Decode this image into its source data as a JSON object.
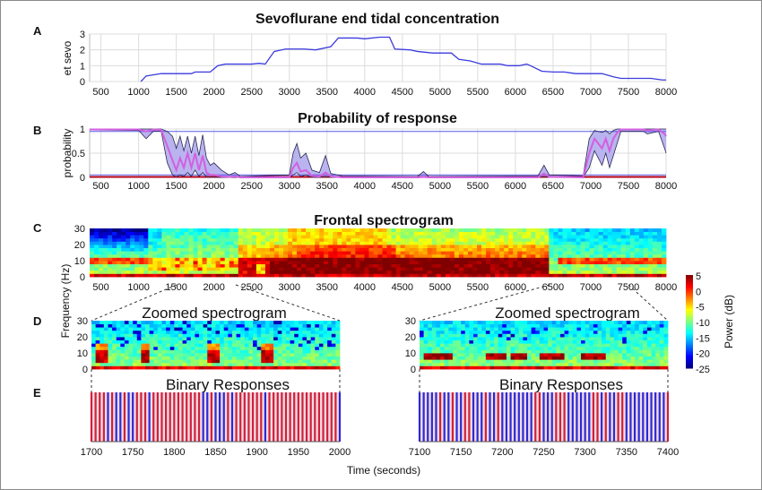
{
  "panels": {
    "A": {
      "letter": "A",
      "title": "Sevoflurane end tidal concentration",
      "ylabel": "et sevo"
    },
    "B": {
      "letter": "B",
      "title": "Probability of response",
      "ylabel": "probability"
    },
    "C": {
      "letter": "C",
      "title": "Frontal spectrogram",
      "ylabel": "Frequency (Hz)"
    },
    "D": {
      "letter": "D",
      "title_left": "Zoomed spectrogram",
      "title_right": "Zoomed spectrogram"
    },
    "E": {
      "letter": "E",
      "title_left": "Binary Responses",
      "title_right": "Binary Responses",
      "xlabel": "Time (seconds)"
    },
    "colorbar": {
      "label": "Power (dB)"
    }
  },
  "chart_data": [
    {
      "id": "A",
      "type": "line",
      "title": "Sevoflurane end tidal concentration",
      "xlabel": "",
      "ylabel": "et sevo",
      "xlim": [
        350,
        8000
      ],
      "ylim": [
        0,
        3
      ],
      "grid": true,
      "xticks": [
        "500",
        "1000",
        "1500",
        "2000",
        "2500",
        "3000",
        "3500",
        "4000",
        "4500",
        "5000",
        "5500",
        "6000",
        "6500",
        "7000",
        "7500",
        "8000"
      ],
      "yticks": [
        "0",
        "1",
        "2",
        "3"
      ],
      "color": "#3a3adf",
      "x": [
        1030,
        1100,
        1300,
        1700,
        1750,
        1950,
        2050,
        2150,
        2500,
        2600,
        2680,
        2800,
        2950,
        3200,
        3350,
        3550,
        3650,
        3900,
        4000,
        4200,
        4330,
        4400,
        4600,
        4700,
        4900,
        5150,
        5250,
        5400,
        5550,
        5800,
        5900,
        6050,
        6150,
        6200,
        6350,
        6500,
        6650,
        6800,
        7150,
        7300,
        7400,
        7800,
        7950,
        8000
      ],
      "y": [
        0,
        0.35,
        0.5,
        0.5,
        0.6,
        0.6,
        1.0,
        1.1,
        1.1,
        1.15,
        1.1,
        1.9,
        2.05,
        2.05,
        2.0,
        2.2,
        2.75,
        2.75,
        2.7,
        2.8,
        2.8,
        2.05,
        2.0,
        1.9,
        1.8,
        1.8,
        1.4,
        1.3,
        1.1,
        1.1,
        1.0,
        1.0,
        1.1,
        1.0,
        0.65,
        0.6,
        0.6,
        0.5,
        0.5,
        0.3,
        0.2,
        0.2,
        0.1,
        0.1
      ]
    },
    {
      "id": "B",
      "type": "area",
      "title": "Probability of response",
      "xlabel": "",
      "ylabel": "probability",
      "xlim": [
        350,
        8000
      ],
      "ylim": [
        0,
        1
      ],
      "grid": true,
      "xticks": [
        "500",
        "1000",
        "1500",
        "2000",
        "2500",
        "3000",
        "3500",
        "4000",
        "4500",
        "5000",
        "5500",
        "6000",
        "6500",
        "7000",
        "7500",
        "8000"
      ],
      "yticks": [
        "0",
        "0.5",
        "1"
      ],
      "reference_lines": [
        0.95,
        0.05
      ],
      "colors": {
        "band": "#b9b4ef",
        "median": "#d35fe0",
        "bounds": "#2a2a55",
        "reference": "#5a5ae8",
        "baseline": "#b0001a"
      },
      "x": [
        350,
        1000,
        1100,
        1200,
        1300,
        1380,
        1450,
        1500,
        1550,
        1600,
        1650,
        1700,
        1750,
        1800,
        1850,
        1900,
        1950,
        2000,
        2100,
        2200,
        2280,
        2350,
        3000,
        3050,
        3100,
        3150,
        3220,
        3300,
        3400,
        3480,
        3550,
        3700,
        4700,
        4780,
        4850,
        6300,
        6380,
        6450,
        6900,
        6980,
        7050,
        7100,
        7150,
        7200,
        7250,
        7300,
        7350,
        7400,
        7700,
        7750,
        7900,
        7980,
        8000
      ],
      "lower": [
        0.98,
        0.97,
        0.8,
        0.96,
        0.95,
        0.3,
        0.05,
        0.01,
        0.05,
        0.02,
        0.1,
        0.02,
        0.15,
        0.02,
        0.1,
        0.01,
        0,
        0,
        0,
        0,
        0,
        0,
        0,
        0.05,
        0.1,
        0.02,
        0.05,
        0,
        0,
        0.02,
        0,
        0,
        0,
        0,
        0,
        0,
        0.02,
        0,
        0,
        0.2,
        0.55,
        0.4,
        0.25,
        0.5,
        0.2,
        0.45,
        0.7,
        0.95,
        0.95,
        0.9,
        0.95,
        0.6,
        0.5
      ],
      "median": [
        0.99,
        0.99,
        0.95,
        0.99,
        0.98,
        0.65,
        0.35,
        0.15,
        0.4,
        0.2,
        0.5,
        0.2,
        0.5,
        0.15,
        0.45,
        0.1,
        0.05,
        0.05,
        0.02,
        0.01,
        0.02,
        0,
        0,
        0.2,
        0.3,
        0.12,
        0.15,
        0.03,
        0.02,
        0.1,
        0.02,
        0,
        0,
        0.01,
        0,
        0,
        0.08,
        0.01,
        0,
        0.5,
        0.8,
        0.7,
        0.6,
        0.8,
        0.55,
        0.8,
        0.92,
        0.99,
        0.99,
        0.97,
        0.99,
        0.9,
        0.85
      ],
      "upper": [
        1,
        1,
        1,
        1,
        1,
        0.95,
        0.85,
        0.6,
        0.85,
        0.55,
        0.85,
        0.5,
        0.85,
        0.45,
        0.88,
        0.4,
        0.25,
        0.3,
        0.15,
        0.05,
        0.1,
        0.02,
        0.05,
        0.5,
        0.7,
        0.4,
        0.5,
        0.15,
        0.1,
        0.45,
        0.08,
        0.03,
        0.02,
        0.12,
        0.02,
        0.03,
        0.25,
        0.05,
        0.03,
        0.8,
        0.97,
        0.95,
        0.93,
        0.97,
        0.9,
        0.97,
        1,
        1,
        1,
        1,
        1,
        1,
        1
      ]
    },
    {
      "id": "C",
      "type": "heatmap",
      "title": "Frontal spectrogram",
      "ylabel": "Frequency (Hz)",
      "xlim": [
        350,
        8000
      ],
      "ylim": [
        0,
        30
      ],
      "xticks": [
        "500",
        "1000",
        "1500",
        "2000",
        "2500",
        "3000",
        "3500",
        "4000",
        "4500",
        "5000",
        "5500",
        "6000",
        "6500",
        "7000",
        "7500",
        "8000"
      ],
      "yticks": [
        "0",
        "10",
        "20",
        "30"
      ]
    },
    {
      "id": "D-left",
      "type": "heatmap",
      "title": "Zoomed spectrogram",
      "xlim": [
        1700,
        2000
      ],
      "ylim": [
        0,
        30
      ],
      "yticks": [
        "0",
        "10",
        "20",
        "30"
      ]
    },
    {
      "id": "D-right",
      "type": "heatmap",
      "title": "Zoomed spectrogram",
      "xlim": [
        7100,
        7400
      ],
      "ylim": [
        0,
        30
      ],
      "yticks": [
        "0",
        "10",
        "20",
        "30"
      ]
    },
    {
      "id": "colorbar",
      "type": "heatmap",
      "label": "Power (dB)",
      "colormap": "jet",
      "range": [
        -25,
        5
      ],
      "ticks": [
        "5",
        "0",
        "-5",
        "-10",
        "-15",
        "-20",
        "-25"
      ]
    },
    {
      "id": "E-left",
      "type": "bar",
      "title": "Binary Responses",
      "xlim": [
        1700,
        2000
      ],
      "step": 5,
      "xticks": [
        "1700",
        "1750",
        "1800",
        "1850",
        "1900",
        "1950",
        "2000"
      ],
      "colors": {
        "1": "#d0203a",
        "0": "#2a2ad8"
      },
      "values": [
        1,
        1,
        1,
        1,
        0,
        1,
        0,
        0,
        1,
        0,
        0,
        1,
        1,
        1,
        0,
        1,
        1,
        1,
        1,
        1,
        1,
        1,
        1,
        1,
        1,
        1,
        1,
        0,
        0,
        1,
        0,
        0,
        0,
        1,
        0,
        1,
        1,
        1,
        1,
        1,
        1,
        1,
        0,
        1,
        1,
        1,
        1,
        1,
        1,
        1,
        1,
        1,
        1,
        1,
        1,
        1,
        1,
        1,
        1,
        1,
        0
      ]
    },
    {
      "id": "E-right",
      "type": "bar",
      "title": "Binary Responses",
      "xlim": [
        7100,
        7400
      ],
      "step": 5,
      "xticks": [
        "7100",
        "7150",
        "7200",
        "7250",
        "7300",
        "7350",
        "7400"
      ],
      "colors": {
        "1": "#d0203a",
        "0": "#2a2ad8"
      },
      "values": [
        0,
        0,
        0,
        0,
        0,
        1,
        0,
        0,
        1,
        0,
        0,
        1,
        1,
        0,
        0,
        0,
        1,
        0,
        0,
        1,
        0,
        0,
        0,
        0,
        0,
        0,
        0,
        0,
        1,
        1,
        0,
        0,
        0,
        1,
        1,
        1,
        0,
        0,
        0,
        0,
        0,
        0,
        1,
        1,
        0,
        1,
        0,
        0,
        1,
        1,
        0,
        0,
        0,
        0,
        0,
        0,
        0,
        0,
        0,
        0,
        1
      ]
    }
  ]
}
